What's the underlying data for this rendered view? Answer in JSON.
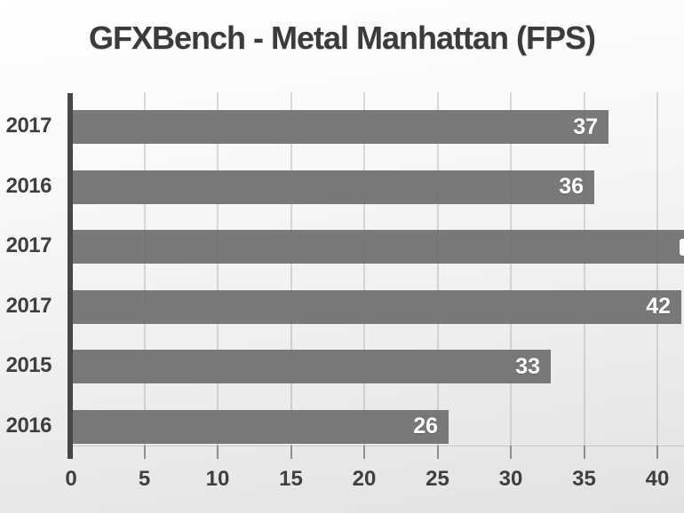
{
  "title": "GFXBench - Metal Manhattan (FPS)",
  "colors": {
    "bar": "#6f6f6f",
    "bar_value_text": "#ffffff",
    "label_text": "#3f3f3f",
    "title_text": "#3b3b3b",
    "axis_line": "#474747",
    "gridline": "#d5d5d5",
    "background_top": "#ffffff",
    "background_bottom": "#e2e2e2"
  },
  "chart_data": {
    "type": "bar",
    "orientation": "horizontal",
    "title": "GFXBench - Metal Manhattan (FPS)",
    "categories": [
      "2017",
      "2016",
      "2017",
      "2017",
      "2015",
      "2016"
    ],
    "values": [
      37,
      36,
      null,
      42,
      33,
      26
    ],
    "value_labels": [
      "37",
      "36",
      "",
      "42",
      "33",
      "26"
    ],
    "clipped_bar_index": 2,
    "clipped_bar_note": "Third bar (2017) runs past the right edge of the image; its value label is cut off, only a sliver of the white digit is visible at the edge.",
    "xlabel": "",
    "ylabel": "",
    "x_ticks": [
      0,
      5,
      10,
      15,
      20,
      25,
      30,
      35,
      40
    ],
    "xlim": [
      0,
      40
    ],
    "grid": "vertical gridlines at every tick",
    "legend": "none"
  }
}
